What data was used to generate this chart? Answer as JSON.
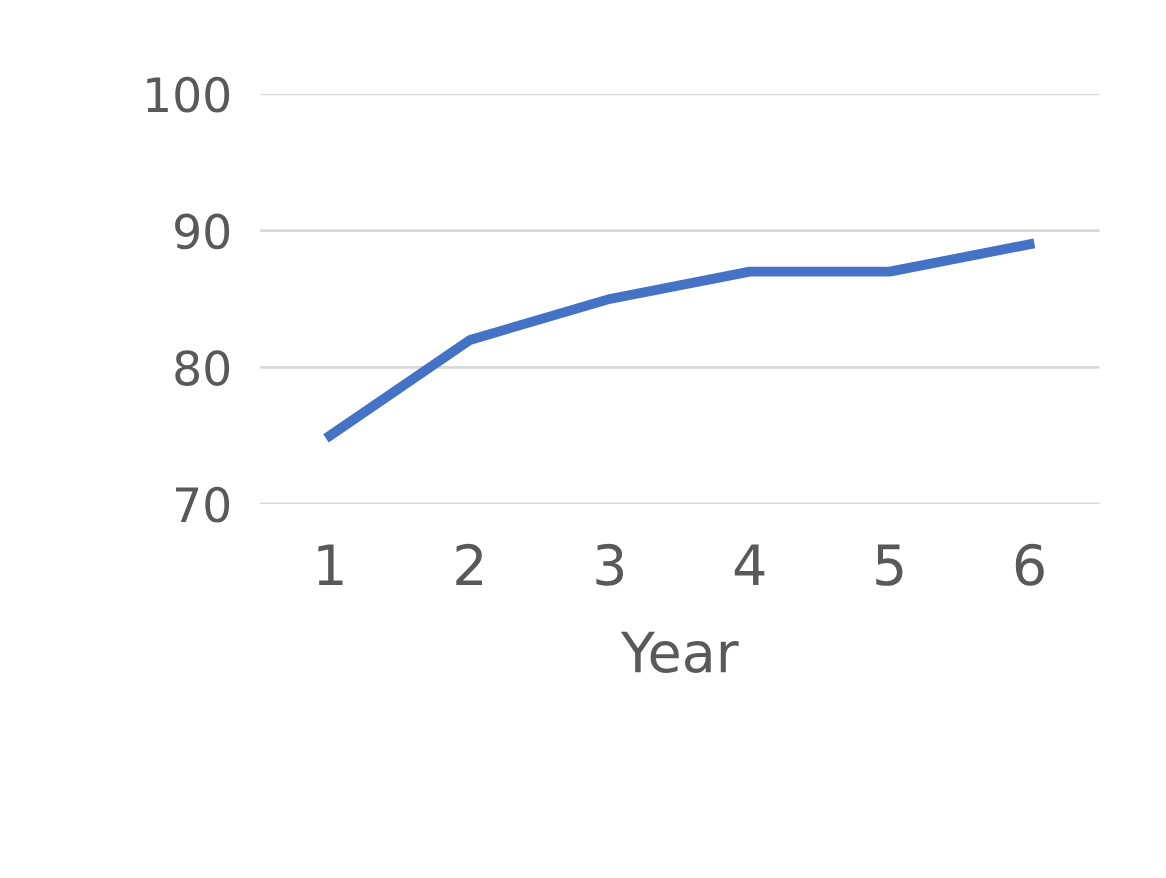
{
  "chart_data": {
    "type": "line",
    "xlabel": "Year",
    "categories": [
      "1",
      "2",
      "3",
      "4",
      "5",
      "6"
    ],
    "series": [
      {
        "color": "#4472c4",
        "values": [
          75,
          82,
          85,
          87,
          87,
          89
        ]
      }
    ],
    "ylim": [
      70,
      100
    ],
    "yticks": [
      70,
      80,
      90,
      100
    ],
    "grid": "y",
    "marker": "none",
    "line_style": "solid"
  }
}
